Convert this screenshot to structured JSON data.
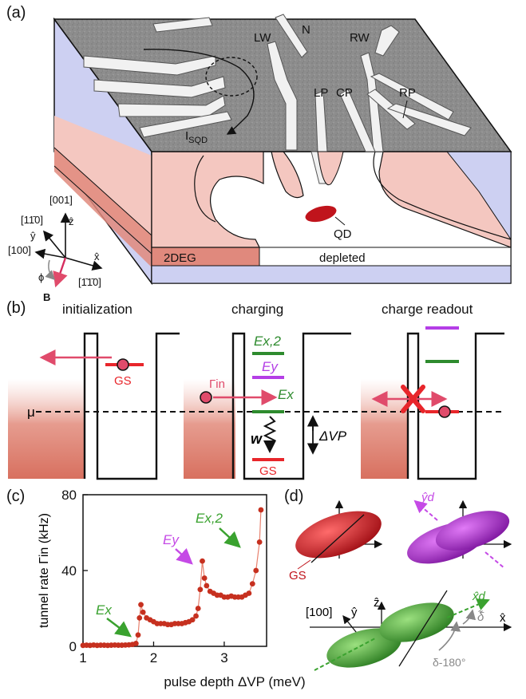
{
  "panels": {
    "a": "(a)",
    "b": "(b)",
    "c": "(c)",
    "d": "(d)"
  },
  "panel_a": {
    "gates": [
      "LW",
      "N",
      "RW",
      "LP",
      "CP",
      "RP"
    ],
    "current_label": "I_SQD",
    "current_base": "I",
    "current_sub": "SQD",
    "qd_label": "QD",
    "twodeg_label": "2DEG",
    "depleted_label": "depleted",
    "axes": {
      "z_crystal": "[001]",
      "y_crystal": "[11̄0]",
      "x100": "[100]",
      "x_crystal": "[1̄1̄0]",
      "x_hat": "x̂",
      "y_hat": "ŷ",
      "z_hat": "ẑ",
      "phi": "ϕ",
      "B": "B"
    },
    "colors": {
      "surface": "#8f8f8f",
      "pink": "#f4c7c0",
      "dark_pink": "#e0897d",
      "blue": "#cdd0f2",
      "qd": "#c0141c",
      "field": "#d62d5f"
    }
  },
  "panel_b": {
    "titles": [
      "initialization",
      "charging",
      "charge readout"
    ],
    "mu": "μ",
    "gs": "GS",
    "gamma_in": "Γin",
    "ex": "Ex",
    "ey": "Ey",
    "ex2": "Ex,2",
    "w": "w",
    "dvp": "ΔVP",
    "colors": {
      "green": "#2e8b2e",
      "purple": "#b43ee6",
      "red": "#e8262b",
      "arrow": "#e04b6b"
    }
  },
  "panel_c": {
    "ylabel": "tunnel rate Γin (kHz)",
    "xlabel": "pulse depth ΔVP (meV)",
    "xticks": [
      "1",
      "2",
      "3"
    ],
    "yticks": [
      "0",
      "40",
      "80"
    ],
    "annotations": [
      "Ex",
      "Ey",
      "Ex,2"
    ]
  },
  "panel_d": {
    "gs": "GS",
    "yd": "ŷd",
    "xd": "x̂d",
    "y_hat": "ŷ",
    "z_hat": "ẑ",
    "x_hat": "x̂",
    "x100": "[100]",
    "delta": "δ̃",
    "delta180": "δ-180°",
    "colors": {
      "gs": "#c0141c",
      "purple": "#a01ec8",
      "green": "#3d9a2f"
    }
  },
  "chart_data": {
    "type": "scatter",
    "title": "",
    "xlabel": "pulse depth ΔVP (meV)",
    "ylabel": "tunnel rate Γin (kHz)",
    "xlim": [
      1.0,
      3.6
    ],
    "ylim": [
      0,
      80
    ],
    "xticks": [
      1,
      2,
      3
    ],
    "yticks": [
      0,
      40,
      80
    ],
    "series": [
      {
        "x": [
          1.0,
          1.05,
          1.1,
          1.15,
          1.2,
          1.25,
          1.3,
          1.35,
          1.4,
          1.45,
          1.5,
          1.55,
          1.6,
          1.65,
          1.7,
          1.75,
          1.78,
          1.8,
          1.82,
          1.85,
          1.9,
          1.95,
          2.0,
          2.05,
          2.1,
          2.15,
          2.2,
          2.25,
          2.3,
          2.35,
          2.4,
          2.45,
          2.5,
          2.55,
          2.6,
          2.63,
          2.66,
          2.69,
          2.72,
          2.75,
          2.8,
          2.85,
          2.9,
          2.95,
          3.0,
          3.05,
          3.1,
          3.15,
          3.2,
          3.25,
          3.3,
          3.35,
          3.4,
          3.45,
          3.5,
          3.52
        ],
        "y": [
          0.5,
          0.6,
          0.5,
          0.7,
          0.5,
          0.6,
          0.6,
          0.5,
          0.6,
          0.7,
          0.6,
          0.6,
          0.7,
          0.8,
          1.0,
          1.5,
          6,
          15,
          22,
          18,
          15,
          14,
          13,
          12,
          12,
          12,
          11.5,
          11.5,
          12,
          12,
          12,
          12.5,
          13,
          14,
          16,
          20,
          30,
          45,
          36,
          32,
          29,
          28,
          27,
          27,
          26,
          26,
          26.5,
          26,
          26,
          26,
          27,
          28,
          33,
          40,
          55,
          72
        ]
      }
    ],
    "annotations": [
      "Ex",
      "Ey",
      "Ex,2"
    ]
  }
}
